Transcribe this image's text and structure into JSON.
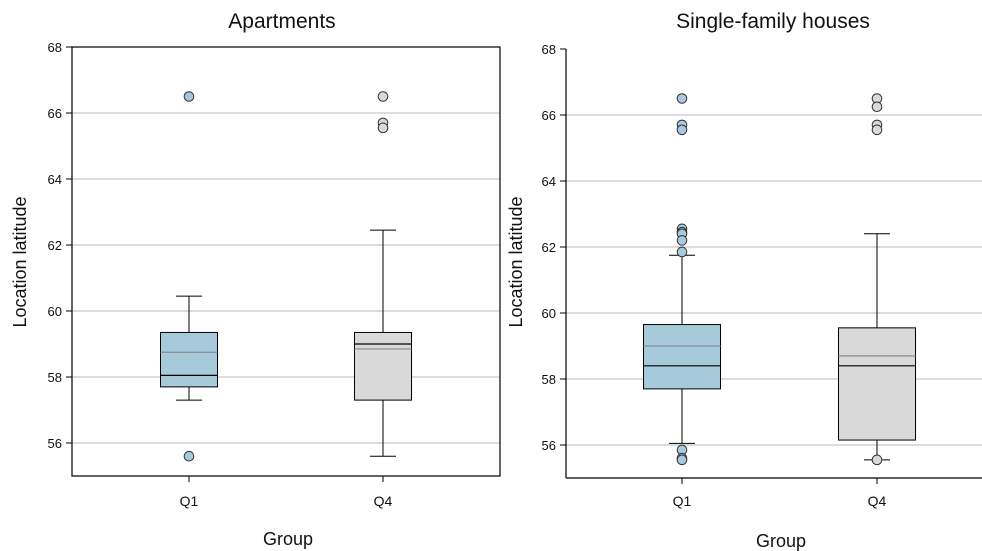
{
  "chart_data": [
    {
      "type": "box",
      "title": "Apartments",
      "xlabel": "Group",
      "ylabel": "Location latitude",
      "ylim": [
        55,
        68
      ],
      "yticks": [
        56,
        58,
        60,
        62,
        64,
        66,
        68
      ],
      "grid": "horizontal",
      "categories": [
        "Q1",
        "Q4"
      ],
      "boxes": [
        {
          "category": "Q1",
          "color": "#a7cadb",
          "whisker_low": 57.3,
          "q1": 57.7,
          "median": 58.05,
          "mean": 58.75,
          "q3": 59.35,
          "whisker_high": 60.45,
          "outliers": [
            66.5,
            55.6
          ]
        },
        {
          "category": "Q4",
          "color": "#d9d9d9",
          "whisker_low": 55.6,
          "q1": 57.3,
          "median": 59.0,
          "mean": 58.85,
          "q3": 59.35,
          "whisker_high": 62.45,
          "outliers": [
            66.5,
            65.7,
            65.55
          ]
        }
      ]
    },
    {
      "type": "box",
      "title": "Single-family houses",
      "xlabel": "Group",
      "ylabel": "Location latitude",
      "ylim": [
        55,
        68
      ],
      "yticks": [
        56,
        58,
        60,
        62,
        64,
        66,
        68
      ],
      "grid": "horizontal",
      "categories": [
        "Q1",
        "Q4"
      ],
      "boxes": [
        {
          "category": "Q1",
          "color": "#a7cadb",
          "whisker_low": 56.05,
          "q1": 57.7,
          "median": 58.4,
          "mean": 59.0,
          "q3": 59.65,
          "whisker_high": 61.75,
          "outliers": [
            66.5,
            65.7,
            65.55,
            62.55,
            62.45,
            62.4,
            62.2,
            61.85,
            55.85,
            55.6,
            55.55
          ]
        },
        {
          "category": "Q4",
          "color": "#d9d9d9",
          "whisker_low": 55.55,
          "q1": 56.15,
          "median": 58.4,
          "mean": 58.7,
          "q3": 59.55,
          "whisker_high": 62.4,
          "outliers": [
            66.5,
            66.25,
            65.7,
            65.55,
            55.55
          ]
        }
      ]
    }
  ]
}
